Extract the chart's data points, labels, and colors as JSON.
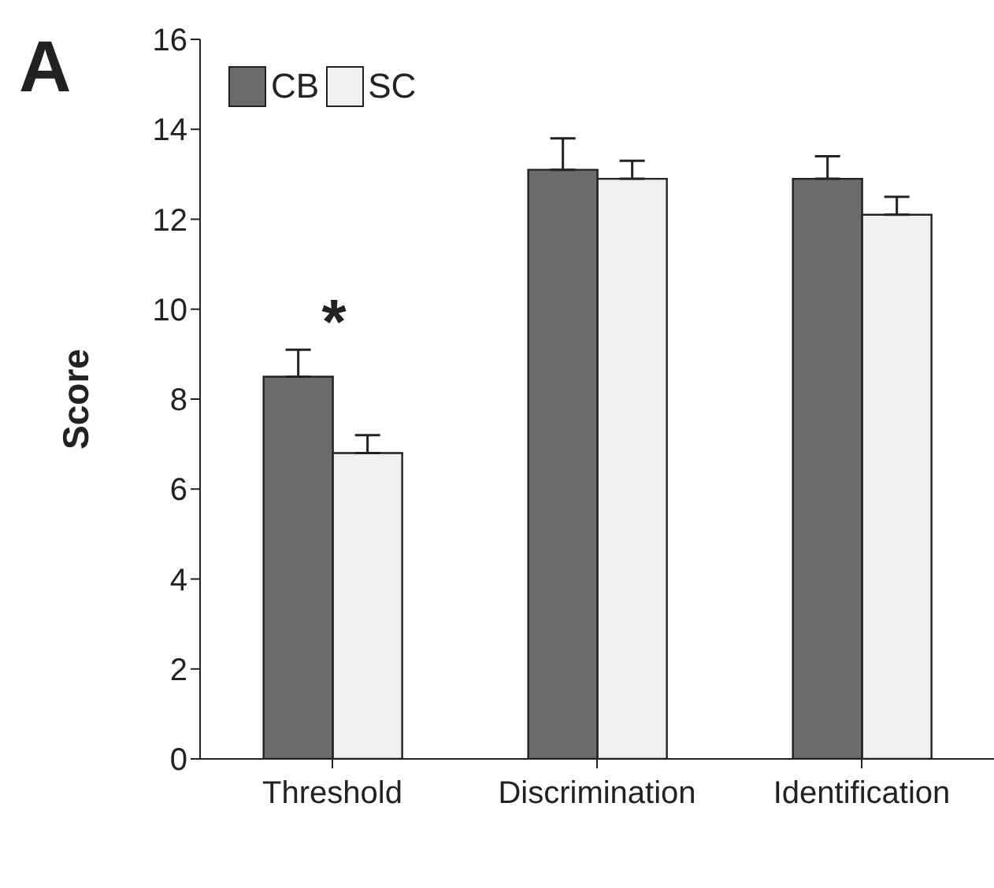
{
  "chart_data": {
    "type": "bar",
    "ylabel": "Score",
    "categories": [
      "Threshold",
      "Discrimination",
      "Identification"
    ],
    "series": [
      {
        "name": "CB",
        "color": "#6b6b6b",
        "values": [
          8.5,
          13.1,
          12.9
        ],
        "errors": [
          [
            8.5,
            9.1
          ],
          [
            13.1,
            13.8
          ],
          [
            12.9,
            13.4
          ]
        ]
      },
      {
        "name": "SC",
        "color": "#f0f0f0",
        "values": [
          6.8,
          12.9,
          12.1
        ],
        "errors": [
          [
            6.8,
            7.2
          ],
          [
            12.9,
            13.3
          ],
          [
            12.1,
            12.5
          ]
        ]
      }
    ],
    "ylim": [
      0,
      16
    ],
    "yticks": [
      0,
      2,
      4,
      6,
      8,
      10,
      12,
      14,
      16
    ],
    "grid": false,
    "legend": "top left",
    "annotations": [
      "A",
      "*"
    ]
  }
}
